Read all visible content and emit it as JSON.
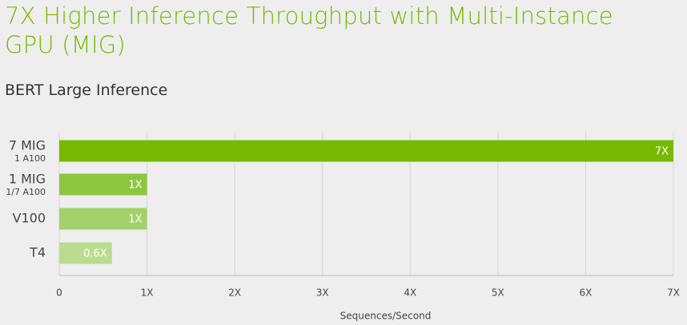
{
  "chart_data": {
    "type": "hbar",
    "title": "7X Higher Inference Throughput with Multi-Instance GPU (MIG)",
    "subtitle": "BERT Large Inference",
    "categories": [
      "7 MIG",
      "1 MIG",
      "V100",
      "T4"
    ],
    "category_sublabels": [
      "1 A100",
      "1/7 A100",
      null,
      null
    ],
    "values": [
      7,
      1,
      1,
      0.6
    ],
    "value_labels": [
      "7X",
      "1X",
      "1X",
      "0.6X"
    ],
    "colors": [
      "#76b900",
      "#8cc63f",
      "#a3d16b",
      "#b9dc8f"
    ],
    "xlabel": "Sequences/Second",
    "xlim": [
      0,
      7
    ],
    "xticks": [
      0,
      {
        "value": 1,
        "label": "1X"
      },
      {
        "value": 2,
        "label": "2X"
      },
      {
        "value": 3,
        "label": "3X"
      },
      {
        "value": 4,
        "label": "4X"
      },
      {
        "value": 5,
        "label": "5X"
      },
      {
        "value": 6,
        "label": "6X"
      },
      {
        "value": 7,
        "label": "7X"
      }
    ],
    "grid": true
  }
}
